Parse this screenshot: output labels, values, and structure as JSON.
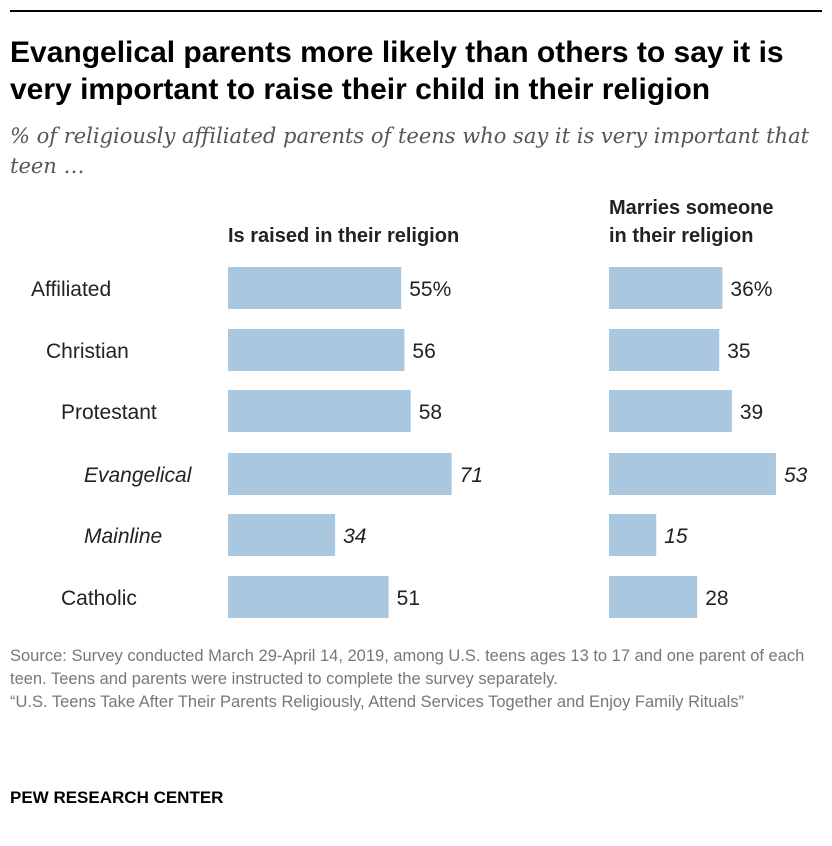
{
  "title": "Evangelical parents more likely than others to say it is very important to raise their child in their religion",
  "subtitle": "% of religiously affiliated parents of teens who say it is very important that teen …",
  "chart_data": {
    "type": "bar",
    "orientation": "horizontal",
    "categories": [
      "Affiliated",
      "Christian",
      "Protestant",
      "Evangelical",
      "Mainline",
      "Catholic"
    ],
    "category_italic": [
      false,
      false,
      false,
      true,
      true,
      false
    ],
    "series": [
      {
        "name": "Is raised in their religion",
        "values": [
          55,
          56,
          58,
          71,
          34,
          51
        ],
        "labels": [
          "55%",
          "56",
          "58",
          "71",
          "34",
          "51"
        ]
      },
      {
        "name": "Marries someone in their religion",
        "name_lines": [
          "Marries someone",
          "in their religion"
        ],
        "values": [
          36,
          35,
          39,
          53,
          15,
          28
        ],
        "labels": [
          "36%",
          "35",
          "39",
          "53",
          "15",
          "28"
        ]
      }
    ],
    "bar_color": "#a9c8df",
    "xlim": [
      0,
      100
    ]
  },
  "footer": {
    "source": "Source: Survey conducted March 29-April 14, 2019, among U.S. teens ages 13 to 17 and one parent of each teen. Teens and parents were instructed to complete the survey separately.",
    "report": "“U.S. Teens Take After Their Parents Religiously, Attend Services Together and Enjoy Family Rituals”"
  },
  "brand": "PEW RESEARCH CENTER"
}
